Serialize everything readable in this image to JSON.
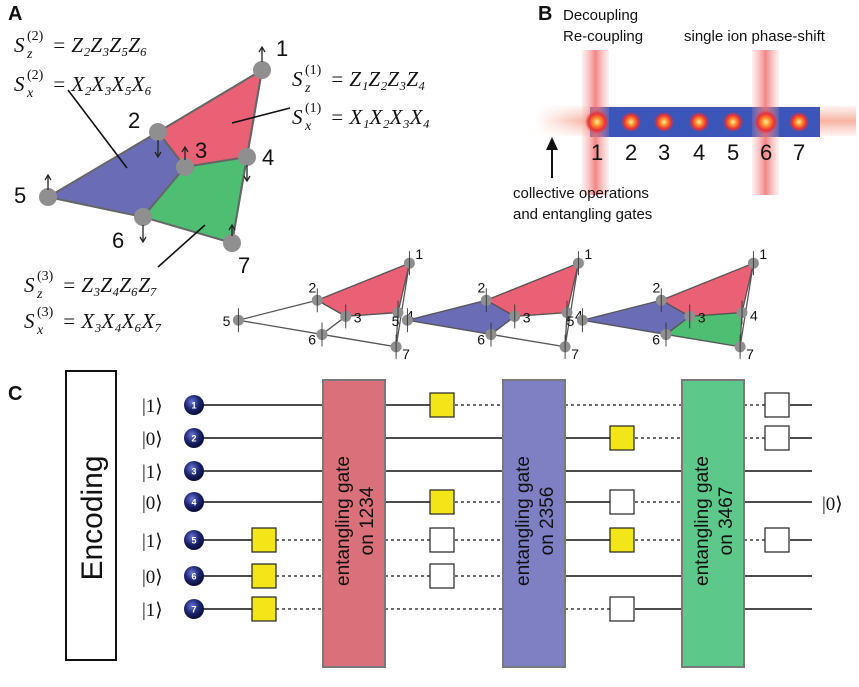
{
  "panels": {
    "a": "A",
    "b": "B",
    "c": "C"
  },
  "panel_a": {
    "labels": [
      "1",
      "2",
      "3",
      "4",
      "5",
      "6",
      "7"
    ],
    "stabilizers": {
      "s1z_lhs": "S",
      "s1z_sub": "z",
      "s1z_sup": "(1)",
      "s1z_rhs": "= Z₁Z₂Z₃Z₄",
      "s1x_lhs": "S",
      "s1x_sub": "x",
      "s1x_sup": "(1)",
      "s1x_rhs": "= X₁X₂X₃X₄",
      "s2z_lhs": "S",
      "s2z_sub": "z",
      "s2z_sup": "(2)",
      "s2z_rhs": "= Z₂Z₃Z₅Z₆",
      "s2x_lhs": "S",
      "s2x_sub": "x",
      "s2x_sup": "(2)",
      "s2x_rhs": "= X₂X₃X₅X₆",
      "s3z_lhs": "S",
      "s3z_sub": "z",
      "s3z_sup": "(3)",
      "s3z_rhs": "= Z₃Z₄Z₆Z₇",
      "s3x_lhs": "S",
      "s3x_sub": "x",
      "s3x_sup": "(3)",
      "s3x_rhs": "= X₃X₄X₆X₇"
    }
  },
  "panel_b": {
    "decoupling": "Decoupling",
    "recoupling": "Re-coupling",
    "phase_shift": "single ion phase-shift",
    "collective_line1": "collective operations",
    "collective_line2": "and entangling gates",
    "ion_labels": [
      "1",
      "2",
      "3",
      "4",
      "5",
      "6",
      "7"
    ]
  },
  "mini_triangles": [
    {
      "labels": [
        "1",
        "2",
        "3",
        "4",
        "5",
        "6",
        "7"
      ],
      "filled": [
        "red"
      ]
    },
    {
      "labels": [
        "1",
        "2",
        "3",
        "4",
        "5",
        "6",
        "7"
      ],
      "filled": [
        "red",
        "blue"
      ]
    },
    {
      "labels": [
        "1",
        "2",
        "3",
        "4",
        "5",
        "6",
        "7"
      ],
      "filled": [
        "red",
        "blue",
        "green"
      ]
    }
  ],
  "panel_c": {
    "encoding": "Encoding",
    "kets": [
      "|1⟩",
      "|0⟩",
      "|1⟩",
      "|0⟩",
      "|1⟩",
      "|0⟩",
      "|1⟩"
    ],
    "ion_numbers": [
      "1",
      "2",
      "3",
      "4",
      "5",
      "6",
      "7"
    ],
    "gates": [
      {
        "line1": "entangling gate",
        "line2": "on 1234",
        "color": "#d9707a"
      },
      {
        "line1": "entangling gate",
        "line2": "on 2356",
        "color": "#7f80c4"
      },
      {
        "line1": "entangling gate",
        "line2": "on 3467",
        "color": "#5cc88a"
      }
    ],
    "output_ket": "|0⟩"
  },
  "colors": {
    "red": "#ea6074",
    "blue": "#6a6db5",
    "green": "#4ebf72",
    "yellow": "#f2e619",
    "node": "#8f8f8f",
    "laser": "#f28b8b",
    "chain": "#3b55b8"
  }
}
